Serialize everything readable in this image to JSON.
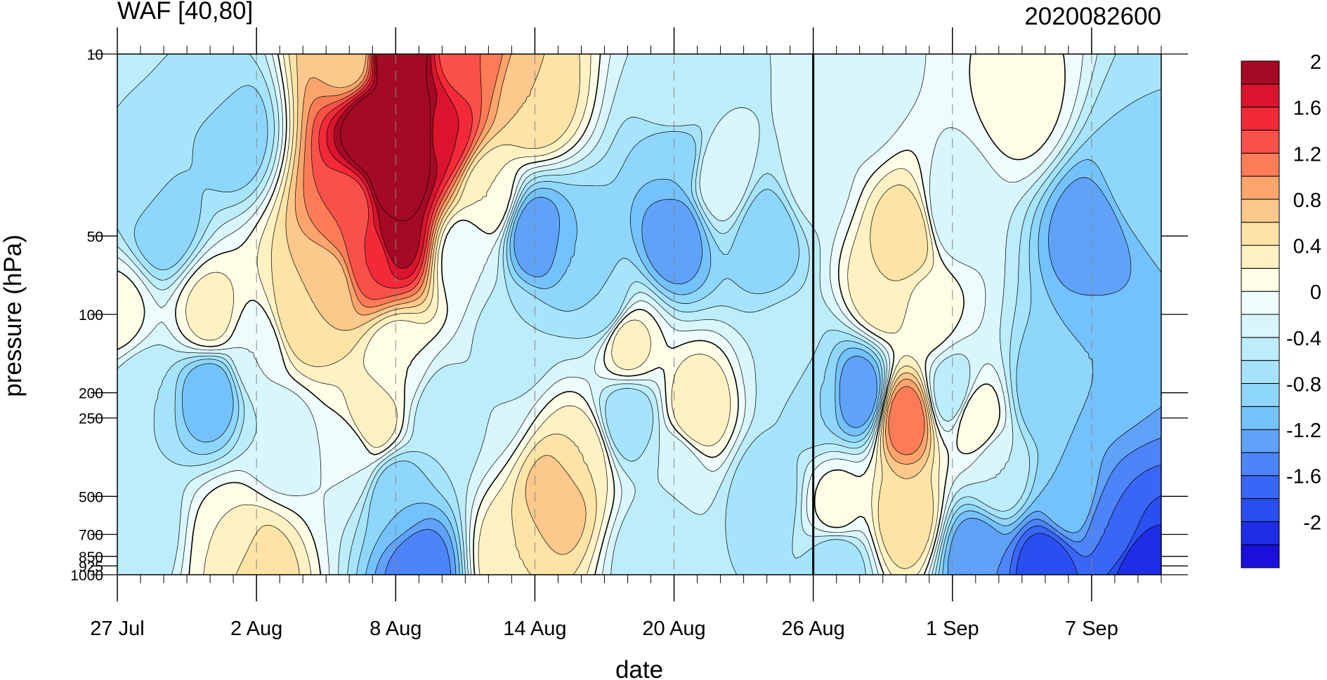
{
  "chart_data": {
    "type": "heatmap",
    "title": "WAF [40,80]",
    "subtitle": "2020082600",
    "xlabel": "date",
    "ylabel": "pressure (hPa)",
    "y_scale": "log",
    "y_inverted": true,
    "ylim": [
      1000,
      10
    ],
    "xlim": [
      "2020-07-27",
      "2020-09-10"
    ],
    "x_ticks": [
      {
        "date": "2020-07-27",
        "label": "27 Jul"
      },
      {
        "date": "2020-08-02",
        "label": "2 Aug"
      },
      {
        "date": "2020-08-08",
        "label": "8 Aug"
      },
      {
        "date": "2020-08-14",
        "label": "14 Aug"
      },
      {
        "date": "2020-08-20",
        "label": "20 Aug"
      },
      {
        "date": "2020-08-26",
        "label": "26 Aug"
      },
      {
        "date": "2020-09-01",
        "label": "1 Sep"
      },
      {
        "date": "2020-09-07",
        "label": "7 Sep"
      }
    ],
    "y_ticks": [
      {
        "value": 10,
        "label": "10"
      },
      {
        "value": 50,
        "label": "50"
      },
      {
        "value": 100,
        "label": "100"
      },
      {
        "value": 200,
        "label": "200"
      },
      {
        "value": 250,
        "label": "250"
      },
      {
        "value": 500,
        "label": "500"
      },
      {
        "value": 700,
        "label": "700"
      },
      {
        "value": 850,
        "label": "850"
      },
      {
        "value": 925,
        "label": "925"
      },
      {
        "value": 1000,
        "label": "1000"
      }
    ],
    "reference_line_date": "2020-08-26",
    "colorbar": {
      "levels": [
        -2.2,
        -2,
        -1.8,
        -1.6,
        -1.4,
        -1.2,
        -1,
        -0.8,
        -0.6,
        -0.4,
        -0.2,
        0,
        0.2,
        0.4,
        0.6,
        0.8,
        1,
        1.2,
        1.4,
        1.6,
        1.8,
        2
      ],
      "labels": [
        "2",
        "1.6",
        "1.2",
        "0.8",
        "0.4",
        "0",
        "-0.4",
        "-0.8",
        "-1.2",
        "-1.6",
        "-2"
      ],
      "label_values": [
        2,
        1.6,
        1.2,
        0.8,
        0.4,
        0,
        -0.4,
        -0.8,
        -1.2,
        -1.6,
        -2
      ],
      "colors": [
        "#1a0fdb",
        "#1f2ee6",
        "#2a4ff0",
        "#3a66f5",
        "#4d84f7",
        "#5fa2f8",
        "#74c2fb",
        "#8ed6fb",
        "#a6e4fb",
        "#bdedfb",
        "#d8f6fc",
        "#eefcfb",
        "#fffde6",
        "#fff1c2",
        "#fde3a6",
        "#fdc88b",
        "#fba56c",
        "#fb7c57",
        "#f9504a",
        "#f22a38",
        "#d9142c",
        "#a50a24"
      ]
    },
    "features": [
      {
        "date": "2020-08-08",
        "pressure": 10,
        "value": 2.4
      },
      {
        "date": "2020-08-07",
        "pressure": 20,
        "value": 2.4
      },
      {
        "date": "2020-08-09",
        "pressure": 20,
        "value": 2.4
      },
      {
        "date": "2020-08-08",
        "pressure": 30,
        "value": 2.4
      },
      {
        "date": "2020-08-08",
        "pressure": 50,
        "value": 2.0
      },
      {
        "date": "2020-08-07",
        "pressure": 60,
        "value": 1.4
      },
      {
        "date": "2020-08-06",
        "pressure": 40,
        "value": 1.2
      },
      {
        "date": "2020-08-10",
        "pressure": 20,
        "value": 1.6
      },
      {
        "date": "2020-08-11",
        "pressure": 10,
        "value": 1.2
      },
      {
        "date": "2020-08-06",
        "pressure": 10,
        "value": 0.6
      },
      {
        "date": "2020-08-05",
        "pressure": 80,
        "value": 0.6
      },
      {
        "date": "2020-08-04",
        "pressure": 100,
        "value": 0.6
      },
      {
        "date": "2020-08-14",
        "pressure": 15,
        "value": 0.6
      },
      {
        "date": "2020-08-12",
        "pressure": 35,
        "value": 0.2
      },
      {
        "date": "2020-08-11",
        "pressure": 60,
        "value": -0.2
      },
      {
        "date": "2020-07-28",
        "pressure": 30,
        "value": -0.6
      },
      {
        "date": "2020-07-29",
        "pressure": 45,
        "value": -1.0
      },
      {
        "date": "2020-07-31",
        "pressure": 12,
        "value": -0.6
      },
      {
        "date": "2020-08-01",
        "pressure": 20,
        "value": -1.0
      },
      {
        "date": "2020-07-27",
        "pressure": 100,
        "value": 0.1
      },
      {
        "date": "2020-07-31",
        "pressure": 100,
        "value": 0.3
      },
      {
        "date": "2020-08-02",
        "pressure": 140,
        "value": -0.2
      },
      {
        "date": "2020-07-28",
        "pressure": 200,
        "value": -0.6
      },
      {
        "date": "2020-07-31",
        "pressure": 200,
        "value": -1.2
      },
      {
        "date": "2020-08-03",
        "pressure": 300,
        "value": -0.4
      },
      {
        "date": "2020-07-28",
        "pressure": 650,
        "value": -0.6
      },
      {
        "date": "2020-08-01",
        "pressure": 750,
        "value": 0.2
      },
      {
        "date": "2020-08-02",
        "pressure": 950,
        "value": 0.6
      },
      {
        "date": "2020-08-06",
        "pressure": 350,
        "value": -0.2
      },
      {
        "date": "2020-08-07",
        "pressure": 250,
        "value": 0.4
      },
      {
        "date": "2020-08-08",
        "pressure": 500,
        "value": -1.0
      },
      {
        "date": "2020-08-09",
        "pressure": 960,
        "value": -1.6
      },
      {
        "date": "2020-08-08",
        "pressure": 150,
        "value": 0.0
      },
      {
        "date": "2020-08-10",
        "pressure": 250,
        "value": -0.6
      },
      {
        "date": "2020-08-13",
        "pressure": 120,
        "value": -0.6
      },
      {
        "date": "2020-08-14",
        "pressure": 50,
        "value": -1.4
      },
      {
        "date": "2020-08-16",
        "pressure": 60,
        "value": -1.0
      },
      {
        "date": "2020-08-12",
        "pressure": 200,
        "value": -0.4
      },
      {
        "date": "2020-08-15",
        "pressure": 500,
        "value": 0.8
      },
      {
        "date": "2020-08-16",
        "pressure": 350,
        "value": 0.4
      },
      {
        "date": "2020-08-13",
        "pressure": 850,
        "value": 0.4
      },
      {
        "date": "2020-08-17",
        "pressure": 90,
        "value": -0.8
      },
      {
        "date": "2020-08-18",
        "pressure": 130,
        "value": 0.3
      },
      {
        "date": "2020-08-18",
        "pressure": 250,
        "value": -0.8
      },
      {
        "date": "2020-08-20",
        "pressure": 50,
        "value": -1.4
      },
      {
        "date": "2020-08-20",
        "pressure": 25,
        "value": -1.0
      },
      {
        "date": "2020-08-20",
        "pressure": 15,
        "value": -0.4
      },
      {
        "date": "2020-08-21",
        "pressure": 230,
        "value": 0.4
      },
      {
        "date": "2020-08-20",
        "pressure": 400,
        "value": -0.4
      },
      {
        "date": "2020-08-22",
        "pressure": 30,
        "value": -0.2
      },
      {
        "date": "2020-08-24",
        "pressure": 50,
        "value": -1.0
      },
      {
        "date": "2020-08-24",
        "pressure": 500,
        "value": -0.8
      },
      {
        "date": "2020-08-19",
        "pressure": 850,
        "value": -0.6
      },
      {
        "date": "2020-08-25",
        "pressure": 150,
        "value": -0.4
      },
      {
        "date": "2020-08-26",
        "pressure": 30,
        "value": -0.3
      },
      {
        "date": "2020-08-26",
        "pressure": 200,
        "value": -0.8
      },
      {
        "date": "2020-08-28",
        "pressure": 200,
        "value": -1.4
      },
      {
        "date": "2020-08-27",
        "pressure": 550,
        "value": 0.1
      },
      {
        "date": "2020-08-27",
        "pressure": 900,
        "value": -0.8
      },
      {
        "date": "2020-08-30",
        "pressure": 50,
        "value": 0.6
      },
      {
        "date": "2020-08-29",
        "pressure": 80,
        "value": 0.4
      },
      {
        "date": "2020-08-28",
        "pressure": 15,
        "value": -0.3
      },
      {
        "date": "2020-08-30",
        "pressure": 250,
        "value": 1.2
      },
      {
        "date": "2020-08-30",
        "pressure": 600,
        "value": 0.6
      },
      {
        "date": "2020-08-31",
        "pressure": 100,
        "value": 0.1
      },
      {
        "date": "2020-09-01",
        "pressure": 200,
        "value": -0.6
      },
      {
        "date": "2020-09-02",
        "pressure": 250,
        "value": 0.2
      },
      {
        "date": "2020-09-01",
        "pressure": 40,
        "value": -0.4
      },
      {
        "date": "2020-09-04",
        "pressure": 15,
        "value": 0.1
      },
      {
        "date": "2020-09-03",
        "pressure": 400,
        "value": -0.4
      },
      {
        "date": "2020-09-05",
        "pressure": 200,
        "value": -1.0
      },
      {
        "date": "2020-09-07",
        "pressure": 50,
        "value": -1.4
      },
      {
        "date": "2020-09-07",
        "pressure": 150,
        "value": -1.0
      },
      {
        "date": "2020-09-09",
        "pressure": 30,
        "value": -0.8
      },
      {
        "date": "2020-09-02",
        "pressure": 850,
        "value": -1.4
      },
      {
        "date": "2020-09-05",
        "pressure": 950,
        "value": -2.0
      },
      {
        "date": "2020-09-09",
        "pressure": 950,
        "value": -2.2
      },
      {
        "date": "2020-09-08",
        "pressure": 700,
        "value": -1.6
      },
      {
        "date": "2020-09-06",
        "pressure": 500,
        "value": -1.0
      }
    ]
  }
}
